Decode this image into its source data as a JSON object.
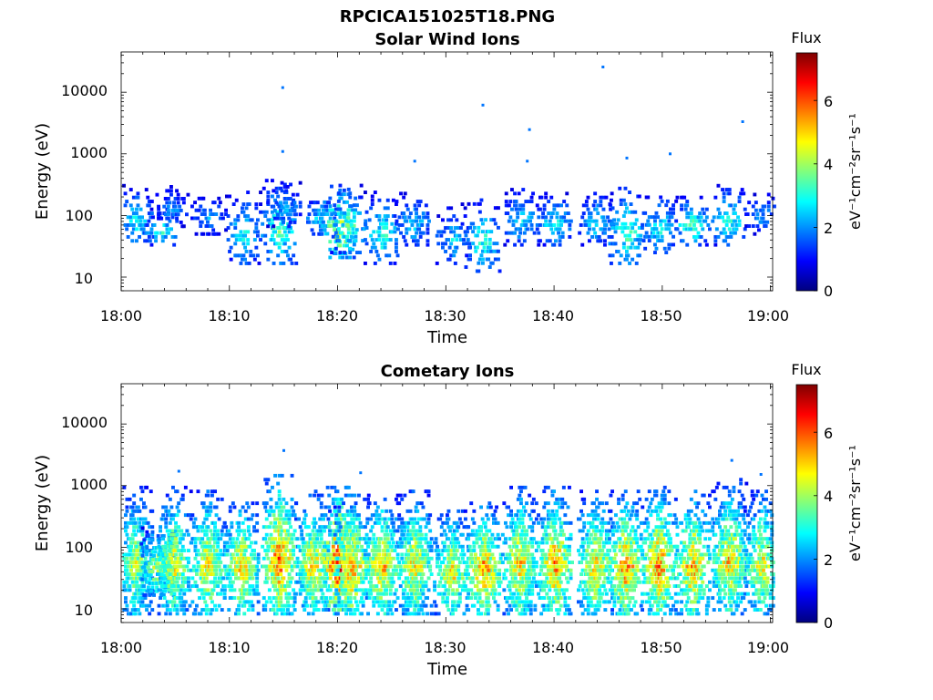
{
  "figure": {
    "title": "RPCICA151025T18.PNG"
  },
  "colormap": {
    "name": "jet",
    "stops": [
      "#00007f",
      "#0000ff",
      "#007fff",
      "#00ffff",
      "#7fff7f",
      "#ffff00",
      "#ff7f00",
      "#ff0000",
      "#7f0000"
    ]
  },
  "chart_data": [
    {
      "type": "heatmap",
      "title": "Solar Wind Ions",
      "xlabel": "Time",
      "ylabel": "Energy (eV)",
      "x_ticks": [
        "18:00",
        "18:10",
        "18:20",
        "18:30",
        "18:40",
        "18:50",
        "19:00"
      ],
      "xlim_minutes": [
        0,
        60.2
      ],
      "y_scale": "log",
      "y_ticks": [
        "10",
        "100",
        "1000",
        "10000"
      ],
      "ylim": [
        6,
        45000
      ],
      "colorbar": {
        "title": "Flux",
        "label": "eV⁻¹cm⁻²sr⁻¹s⁻¹",
        "ticks": [
          "0",
          "2",
          "4",
          "6"
        ],
        "range": [
          0,
          7.5
        ]
      },
      "bursts": [
        {
          "t": 1.3,
          "e_lo": 40,
          "e_hi": 300,
          "max": 3.0
        },
        {
          "t": 3.6,
          "e_lo": 40,
          "e_hi": 120,
          "max": 3.2
        },
        {
          "t": 4.5,
          "e_lo": 80,
          "e_hi": 300,
          "max": 2.2
        },
        {
          "t": 8.0,
          "e_lo": 60,
          "e_hi": 250,
          "max": 2.2
        },
        {
          "t": 11.2,
          "e_lo": 20,
          "e_hi": 250,
          "max": 3.0
        },
        {
          "t": 14.5,
          "e_lo": 20,
          "e_hi": 400,
          "max": 3.6
        },
        {
          "t": 15.0,
          "e_lo": 80,
          "e_hi": 350,
          "max": 2.4
        },
        {
          "t": 18.3,
          "e_lo": 60,
          "e_hi": 200,
          "max": 2.8
        },
        {
          "t": 20.1,
          "e_lo": 25,
          "e_hi": 300,
          "max": 5.0
        },
        {
          "t": 20.9,
          "e_lo": 30,
          "e_hi": 300,
          "max": 3.6
        },
        {
          "t": 24.0,
          "e_lo": 20,
          "e_hi": 250,
          "max": 3.3
        },
        {
          "t": 26.9,
          "e_lo": 40,
          "e_hi": 250,
          "max": 2.8
        },
        {
          "t": 30.5,
          "e_lo": 20,
          "e_hi": 150,
          "max": 2.6
        },
        {
          "t": 33.3,
          "e_lo": 15,
          "e_hi": 200,
          "max": 3.3
        },
        {
          "t": 36.9,
          "e_lo": 40,
          "e_hi": 300,
          "max": 2.8
        },
        {
          "t": 39.9,
          "e_lo": 40,
          "e_hi": 250,
          "max": 3.0
        },
        {
          "t": 43.8,
          "e_lo": 40,
          "e_hi": 250,
          "max": 2.8
        },
        {
          "t": 46.6,
          "e_lo": 20,
          "e_hi": 300,
          "max": 3.6
        },
        {
          "t": 49.6,
          "e_lo": 30,
          "e_hi": 250,
          "max": 3.0
        },
        {
          "t": 52.7,
          "e_lo": 40,
          "e_hi": 200,
          "max": 3.6
        },
        {
          "t": 56.1,
          "e_lo": 40,
          "e_hi": 300,
          "max": 3.3
        },
        {
          "t": 59.2,
          "e_lo": 60,
          "e_hi": 250,
          "max": 2.2
        }
      ],
      "sparse_points": [
        {
          "t": 14.8,
          "e": 12500,
          "v": 1.8
        },
        {
          "t": 14.8,
          "e": 1150,
          "v": 1.8
        },
        {
          "t": 33.3,
          "e": 6500,
          "v": 1.8
        },
        {
          "t": 37.6,
          "e": 2600,
          "v": 1.8
        },
        {
          "t": 44.4,
          "e": 27000,
          "v": 1.8
        },
        {
          "t": 50.6,
          "e": 1050,
          "v": 1.8
        },
        {
          "t": 57.3,
          "e": 3500,
          "v": 1.8
        },
        {
          "t": 27.0,
          "e": 800,
          "v": 1.8
        },
        {
          "t": 37.4,
          "e": 800,
          "v": 1.8
        },
        {
          "t": 46.6,
          "e": 900,
          "v": 1.8
        }
      ]
    },
    {
      "type": "heatmap",
      "title": "Cometary Ions",
      "xlabel": "Time",
      "ylabel": "Energy (eV)",
      "x_ticks": [
        "18:00",
        "18:10",
        "18:20",
        "18:30",
        "18:40",
        "18:50",
        "19:00"
      ],
      "xlim_minutes": [
        0,
        60.2
      ],
      "y_scale": "log",
      "y_ticks": [
        "10",
        "100",
        "1000",
        "10000"
      ],
      "ylim": [
        6,
        45000
      ],
      "colorbar": {
        "title": "Flux",
        "label": "eV⁻¹cm⁻²sr⁻¹s⁻¹",
        "ticks": [
          "0",
          "2",
          "4",
          "6"
        ],
        "range": [
          0,
          7.5
        ]
      },
      "bursts": [
        {
          "t": 1.2,
          "e_lo": 10,
          "e_hi": 1000,
          "max": 4.4
        },
        {
          "t": 3.3,
          "e_lo": 20,
          "e_hi": 200,
          "max": 4.6
        },
        {
          "t": 4.8,
          "e_lo": 10,
          "e_hi": 900,
          "max": 4.8
        },
        {
          "t": 7.9,
          "e_lo": 10,
          "e_hi": 800,
          "max": 5.0
        },
        {
          "t": 11.0,
          "e_lo": 10,
          "e_hi": 600,
          "max": 5.2
        },
        {
          "t": 14.5,
          "e_lo": 10,
          "e_hi": 1500,
          "max": 5.8
        },
        {
          "t": 17.6,
          "e_lo": 10,
          "e_hi": 800,
          "max": 5.0
        },
        {
          "t": 20.0,
          "e_lo": 10,
          "e_hi": 900,
          "max": 6.6
        },
        {
          "t": 21.2,
          "e_lo": 10,
          "e_hi": 700,
          "max": 5.6
        },
        {
          "t": 24.0,
          "e_lo": 10,
          "e_hi": 700,
          "max": 5.4
        },
        {
          "t": 27.0,
          "e_lo": 10,
          "e_hi": 800,
          "max": 5.0
        },
        {
          "t": 30.4,
          "e_lo": 10,
          "e_hi": 400,
          "max": 5.0
        },
        {
          "t": 33.4,
          "e_lo": 10,
          "e_hi": 500,
          "max": 5.8
        },
        {
          "t": 36.7,
          "e_lo": 10,
          "e_hi": 900,
          "max": 5.2
        },
        {
          "t": 40.0,
          "e_lo": 10,
          "e_hi": 900,
          "max": 5.6
        },
        {
          "t": 43.7,
          "e_lo": 10,
          "e_hi": 800,
          "max": 5.2
        },
        {
          "t": 46.5,
          "e_lo": 10,
          "e_hi": 800,
          "max": 5.8
        },
        {
          "t": 49.6,
          "e_lo": 10,
          "e_hi": 900,
          "max": 5.8
        },
        {
          "t": 52.7,
          "e_lo": 10,
          "e_hi": 800,
          "max": 5.6
        },
        {
          "t": 56.1,
          "e_lo": 10,
          "e_hi": 1200,
          "max": 5.2
        },
        {
          "t": 59.1,
          "e_lo": 10,
          "e_hi": 800,
          "max": 4.8
        }
      ],
      "sparse_points": [
        {
          "t": 14.9,
          "e": 3900,
          "v": 1.8
        },
        {
          "t": 22.0,
          "e": 1700,
          "v": 1.8
        },
        {
          "t": 56.3,
          "e": 2700,
          "v": 1.8
        },
        {
          "t": 5.2,
          "e": 1800,
          "v": 1.8
        },
        {
          "t": 59.0,
          "e": 1600,
          "v": 1.8
        }
      ]
    }
  ]
}
